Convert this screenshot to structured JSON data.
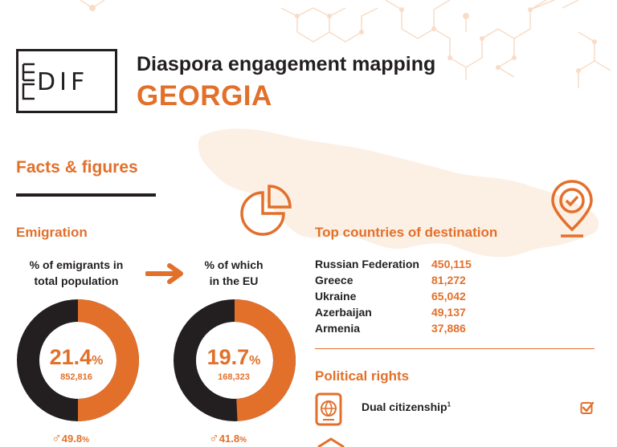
{
  "logo": {
    "text": "EUDiF"
  },
  "header": {
    "title": "Diaspora engagement mapping",
    "country": "GEORGIA"
  },
  "facts": {
    "heading": "Facts & figures"
  },
  "emigration": {
    "heading": "Emigration",
    "total": {
      "caption_line1": "% of emigrants in",
      "caption_line2": "total population",
      "percent": "21.4",
      "count": "852,816",
      "male_percent": "49.8",
      "value": 21.4
    },
    "eu": {
      "caption_line1": "% of which",
      "caption_line2": "in the EU",
      "percent": "19.7",
      "count": "168,323",
      "male_percent": "41.8",
      "value": 19.7
    },
    "percent_sign": "%"
  },
  "destinations": {
    "heading": "Top countries of destination",
    "rows": [
      {
        "country": "Russian Federation",
        "value": "450,115"
      },
      {
        "country": "Greece",
        "value": "81,272"
      },
      {
        "country": "Ukraine",
        "value": "65,042"
      },
      {
        "country": "Azerbaijan",
        "value": "49,137"
      },
      {
        "country": "Armenia",
        "value": "37,886"
      }
    ]
  },
  "political": {
    "heading": "Political rights",
    "dual_citizenship": {
      "label": "Dual citizenship",
      "footnote": "1",
      "checked": true
    }
  },
  "colors": {
    "accent": "#e2702b",
    "dark": "#231f20",
    "map": "#fcefe3",
    "pattern": "#f9dcc6"
  }
}
